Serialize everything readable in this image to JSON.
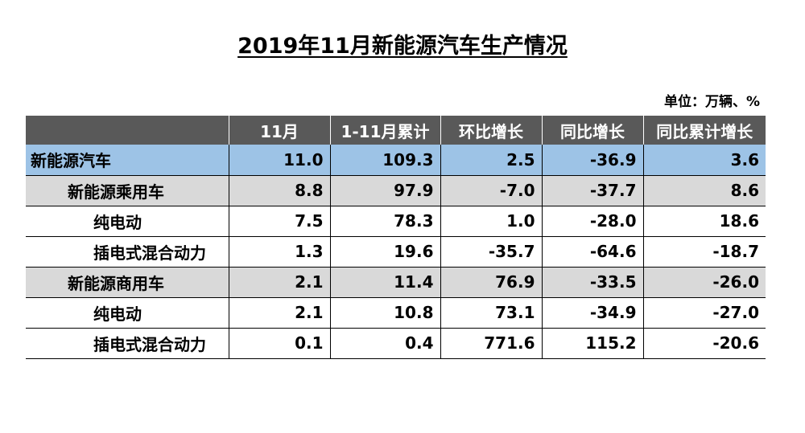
{
  "title": "2019年11月新能源汽车生产情况",
  "unit_label": "单位：万辆、%",
  "table": {
    "headers": [
      "",
      "11月",
      "1-11月累计",
      "环比增长",
      "同比增长",
      "同比累计增长"
    ],
    "rows": [
      {
        "level": 0,
        "name": "新能源汽车",
        "values": [
          "11.0",
          "109.3",
          "2.5",
          "-36.9",
          "3.6"
        ]
      },
      {
        "level": 1,
        "name": "新能源乘用车",
        "values": [
          "8.8",
          "97.9",
          "-7.0",
          "-37.7",
          "8.6"
        ]
      },
      {
        "level": 2,
        "name": "纯电动",
        "values": [
          "7.5",
          "78.3",
          "1.0",
          "-28.0",
          "18.6"
        ]
      },
      {
        "level": 2,
        "name": "插电式混合动力",
        "values": [
          "1.3",
          "19.6",
          "-35.7",
          "-64.6",
          "-18.7"
        ]
      },
      {
        "level": 1,
        "name": "新能源商用车",
        "values": [
          "2.1",
          "11.4",
          "76.9",
          "-33.5",
          "-26.0"
        ]
      },
      {
        "level": 2,
        "name": "纯电动",
        "values": [
          "2.1",
          "10.8",
          "73.1",
          "-34.9",
          "-27.0"
        ]
      },
      {
        "level": 2,
        "name": "插电式混合动力",
        "values": [
          "0.1",
          "0.4",
          "771.6",
          "115.2",
          "-20.6"
        ]
      }
    ]
  },
  "colors": {
    "header_bg": "#595959",
    "total_row_bg": "#9dc3e6",
    "subtotal_row_bg": "#d9d9d9"
  }
}
